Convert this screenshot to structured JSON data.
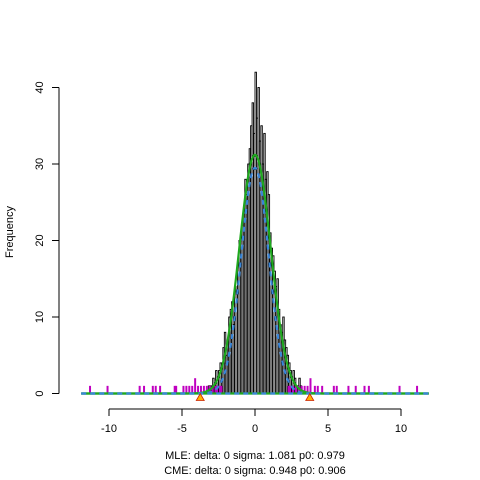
{
  "chart_data": {
    "type": "bar",
    "title": "",
    "xlabel": "",
    "ylabel": "Frequency",
    "xlim": [
      -12.5,
      12.5
    ],
    "ylim": [
      0,
      42
    ],
    "xticks": [
      -10,
      -5,
      0,
      5,
      10
    ],
    "yticks": [
      0,
      10,
      20,
      30,
      40
    ],
    "x_tick_labels": [
      "-10",
      "-5",
      "0",
      "5",
      "10"
    ],
    "y_tick_labels": [
      "0",
      "10",
      "20",
      "30",
      "40"
    ],
    "histogram": {
      "bin_width": 0.1,
      "centers": [
        -3.15,
        -3.05,
        -2.95,
        -2.85,
        -2.75,
        -2.65,
        -2.55,
        -2.45,
        -2.35,
        -2.25,
        -2.15,
        -2.05,
        -1.95,
        -1.85,
        -1.75,
        -1.65,
        -1.55,
        -1.45,
        -1.35,
        -1.25,
        -1.15,
        -1.05,
        -0.95,
        -0.85,
        -0.75,
        -0.65,
        -0.55,
        -0.45,
        -0.35,
        -0.25,
        -0.15,
        -0.05,
        0.05,
        0.15,
        0.25,
        0.35,
        0.45,
        0.55,
        0.65,
        0.75,
        0.85,
        0.95,
        1.05,
        1.15,
        1.25,
        1.35,
        1.45,
        1.55,
        1.65,
        1.75,
        1.85,
        1.95,
        2.05,
        2.15,
        2.25,
        2.35,
        2.45,
        2.55,
        2.65,
        2.75,
        2.85,
        2.95,
        3.05,
        3.15
      ],
      "counts": [
        1,
        1,
        1,
        2,
        1,
        3,
        2,
        3,
        4,
        4,
        6,
        8,
        5,
        7,
        10,
        11,
        12,
        9,
        14,
        13,
        17,
        20,
        18,
        22,
        24,
        28,
        26,
        30,
        32,
        35,
        38,
        34,
        42,
        36,
        40,
        33,
        35,
        30,
        34,
        28,
        29,
        26,
        21,
        19,
        18,
        16,
        14,
        15,
        11,
        9,
        8,
        10,
        7,
        6,
        5,
        4,
        3,
        2,
        3,
        2,
        1,
        1,
        2,
        1
      ]
    },
    "rug": {
      "x": [
        -11.3,
        -10.1,
        -7.9,
        -7.6,
        -7.0,
        -6.8,
        -6.5,
        -5.5,
        -5.4,
        -4.9,
        -4.7,
        -4.5,
        -4.3,
        -4.1,
        -3.9,
        -3.7,
        -3.5,
        -3.3,
        -3.1,
        -2.9,
        -2.7,
        -2.6,
        -2.4,
        -2.3,
        2.3,
        2.4,
        2.6,
        2.8,
        3.0,
        3.2,
        3.4,
        3.6,
        3.8,
        4.1,
        4.3,
        4.6,
        5.4,
        5.6,
        6.4,
        6.9,
        7.5,
        7.8,
        9.9,
        11.1
      ],
      "heights": [
        1,
        1,
        1,
        1,
        1,
        1,
        1,
        1,
        1,
        1,
        1,
        1,
        1,
        2,
        1,
        1,
        1,
        1,
        1,
        1,
        1,
        1,
        1,
        1,
        1,
        1,
        1,
        1,
        1,
        1,
        1,
        1,
        2,
        1,
        1,
        1,
        1,
        1,
        1,
        1,
        1,
        1,
        1,
        1
      ]
    },
    "series": [
      {
        "name": "",
        "type": "line",
        "style": "solid",
        "color": "#1fa81f",
        "sigma": 1.081,
        "p0": 0.979
      },
      {
        "name": "",
        "type": "line",
        "style": "dashed",
        "color": "#3a86d9",
        "sigma": 0.948,
        "p0": 0.906
      }
    ],
    "threshold_markers": {
      "x": [
        -3.75,
        3.75
      ],
      "color": "#ffb000",
      "edge": "#cc2200"
    },
    "colors": {
      "bars": "#000000",
      "rug": "#c000c0",
      "baseline_green": "#1fa81f",
      "baseline_blue": "#3a86d9"
    },
    "annotations": [
      "MLE: delta: 0 sigma: 1.081 p0: 0.979",
      "CME: delta: 0 sigma: 0.948 p0: 0.906"
    ],
    "grid": false,
    "legend": "none"
  }
}
